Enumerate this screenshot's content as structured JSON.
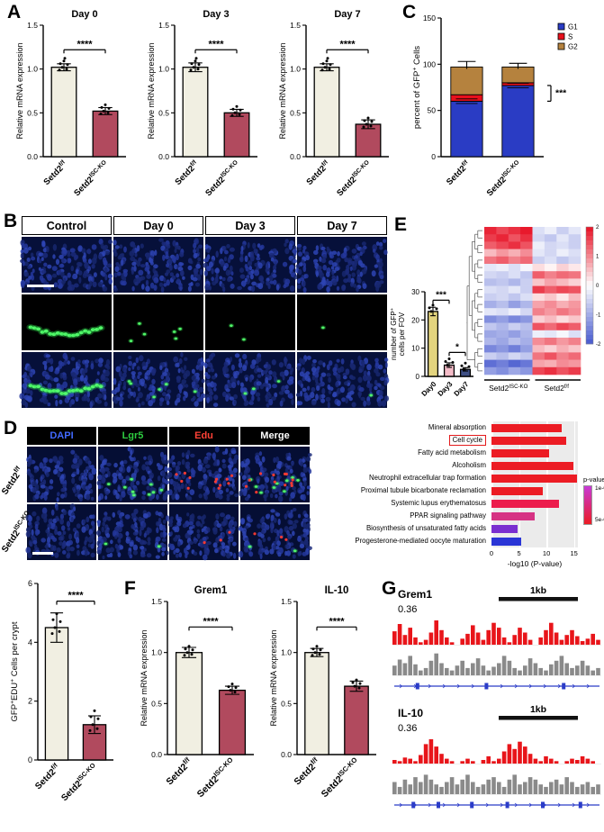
{
  "colors": {
    "cream": "#f1efe2",
    "maroon": "#b14a5e",
    "g1_blue": "#2a3cc4",
    "s_red": "#e8101c",
    "g2_brown": "#b5823e",
    "day0": "#e3d47e",
    "day3": "#f4bcc8",
    "day7": "#3e4f85",
    "heat_red": "#e8192c",
    "heat_blue": "#4d5fd0",
    "track_red": "#e8151a",
    "track_gray": "#8a8a8a",
    "gene_blue": "#2b3cc8"
  },
  "panelA": {
    "label": "A",
    "ylabel": "Relative mRNA expression",
    "yticks": [
      0.0,
      0.5,
      1.0,
      1.5
    ],
    "categories": [
      [
        {
          "t": "Setd2"
        },
        {
          "t": "f/f",
          "sup": true
        }
      ],
      [
        {
          "t": "Setd2"
        },
        {
          "t": "ISC-KO",
          "sup": true
        }
      ]
    ],
    "charts": [
      {
        "title": "Day 0",
        "values": [
          1.02,
          0.52
        ],
        "errors": [
          0.04,
          0.04
        ],
        "sig": "****"
      },
      {
        "title": "Day 3",
        "values": [
          1.02,
          0.5
        ],
        "errors": [
          0.05,
          0.04
        ],
        "sig": "****"
      },
      {
        "title": "Day 7",
        "values": [
          1.02,
          0.37
        ],
        "errors": [
          0.04,
          0.05
        ],
        "sig": "****"
      }
    ]
  },
  "panelC": {
    "label": "C",
    "ylabel_parts": [
      {
        "t": "percent of GFP"
      },
      {
        "t": "+",
        "sup": true
      },
      {
        "t": " Cells"
      }
    ],
    "yticks": [
      0,
      50,
      100,
      150
    ],
    "legend": [
      {
        "label": "G1",
        "color": "#2a3cc4"
      },
      {
        "label": "S",
        "color": "#e8101c"
      },
      {
        "label": "G2",
        "color": "#b5823e"
      }
    ],
    "categories": [
      [
        {
          "t": "Setd2"
        },
        {
          "t": "f/f",
          "sup": true
        }
      ],
      [
        {
          "t": "Setd2"
        },
        {
          "t": "ISC-KO",
          "sup": true
        }
      ]
    ],
    "bars": [
      {
        "G1": 60,
        "S": 7,
        "G2": 30
      },
      {
        "G1": 77,
        "S": 3,
        "G2": 17
      }
    ],
    "errors": [
      6,
      4
    ],
    "sig": "***"
  },
  "panelB": {
    "label": "B",
    "columns": [
      "Control",
      "Day 0",
      "Day 3",
      "Day 7"
    ],
    "gfp_green_counts": [
      0,
      6,
      2,
      1
    ],
    "merge_green_counts": [
      0,
      6,
      3,
      1
    ],
    "chart": {
      "ylabel_lines": [
        [
          {
            "t": "number of GFP"
          },
          {
            "t": "+",
            "sup": true
          }
        ],
        [
          {
            "t": "cells per FOV"
          }
        ]
      ],
      "categories": [
        "Day0",
        "Day3",
        "Day7"
      ],
      "values": [
        23,
        4,
        2.5
      ],
      "errors": [
        1.5,
        0.8,
        0.6
      ],
      "yticks": [
        0,
        10,
        20,
        30
      ],
      "sigs": [
        {
          "a": 0,
          "b": 1,
          "y": 27,
          "label": "***"
        },
        {
          "a": 1,
          "b": 2,
          "y": 8.5,
          "label": "*"
        }
      ]
    }
  },
  "panelD": {
    "label": "D",
    "columns": [
      {
        "label": "DAPI",
        "color": "#4169ff"
      },
      {
        "label": "Lgr5",
        "color": "#2ecc40"
      },
      {
        "label": "Edu",
        "color": "#ff4136"
      },
      {
        "label": "Merge",
        "color": "#ffffff"
      }
    ],
    "rows": [
      {
        "base": "Setd2",
        "sup": "f/f",
        "lgr5_green": 9,
        "edu_red": 12
      },
      {
        "base": "Setd2",
        "sup": "ISC-KO",
        "lgr5_green": 2,
        "edu_red": 3
      }
    ]
  },
  "eduChart": {
    "ylabel_parts": [
      {
        "t": "GFP"
      },
      {
        "t": "+",
        "sup": true
      },
      {
        "t": "EDU"
      },
      {
        "t": "+",
        "sup": true
      },
      {
        "t": " Cells per crypt"
      }
    ],
    "yticks": [
      0,
      2,
      4,
      6
    ],
    "categories": [
      [
        {
          "t": "Setd2"
        },
        {
          "t": "f/f",
          "sup": true
        }
      ],
      [
        {
          "t": "Setd2"
        },
        {
          "t": "ISC-KO",
          "sup": true
        }
      ]
    ],
    "values": [
      4.5,
      1.2
    ],
    "errors": [
      0.5,
      0.3
    ],
    "sig": "****"
  },
  "panelE": {
    "label": "E",
    "heatmap": {
      "group_labels": [
        [
          {
            "t": "Setd2"
          },
          {
            "t": "ISC-KO",
            "sup": true
          }
        ],
        [
          {
            "t": "Setd2"
          },
          {
            "t": "f/f",
            "sup": true
          }
        ]
      ],
      "colorbar_ticks": [
        "2",
        "1",
        "0",
        "-1",
        "-2"
      ],
      "matrix": [
        [
          1.9,
          1.6,
          1.8,
          2.0,
          -0.4,
          -0.2,
          -0.6,
          -0.3
        ],
        [
          1.7,
          1.9,
          1.5,
          1.8,
          -0.5,
          -0.7,
          -0.3,
          -0.6
        ],
        [
          1.4,
          1.6,
          1.8,
          1.5,
          -0.2,
          -0.5,
          -0.4,
          -0.6
        ],
        [
          0.6,
          0.9,
          0.7,
          1.0,
          -0.3,
          -0.5,
          -0.2,
          -0.4
        ],
        [
          1.2,
          1.4,
          1.1,
          1.3,
          -0.6,
          -0.4,
          -0.7,
          -0.5
        ],
        [
          -0.3,
          -0.2,
          -0.4,
          -0.1,
          0.3,
          0.1,
          0.4,
          0.2
        ],
        [
          -0.5,
          -0.6,
          -0.4,
          -0.7,
          1.4,
          1.1,
          1.3,
          1.2
        ],
        [
          -0.8,
          -0.7,
          -0.9,
          -0.6,
          0.5,
          0.8,
          0.6,
          0.4
        ],
        [
          -0.4,
          -0.5,
          -0.3,
          -0.6,
          1.7,
          1.4,
          1.6,
          1.5
        ],
        [
          -0.6,
          -0.5,
          -0.7,
          -0.4,
          0.3,
          0.5,
          0.2,
          0.6
        ],
        [
          -1.0,
          -0.8,
          -1.2,
          -0.9,
          0.8,
          1.0,
          0.7,
          0.9
        ],
        [
          -0.3,
          -0.4,
          -0.2,
          -0.5,
          1.1,
          0.9,
          1.2,
          1.0
        ],
        [
          -1.4,
          -1.2,
          -1.5,
          -1.3,
          0.4,
          0.6,
          0.3,
          0.5
        ],
        [
          -0.7,
          -0.9,
          -0.6,
          -0.8,
          1.5,
          1.3,
          1.6,
          1.4
        ],
        [
          -1.1,
          -1.0,
          -1.2,
          -0.9,
          -0.2,
          -0.3,
          -0.1,
          -0.4
        ],
        [
          -0.9,
          -1.1,
          -0.8,
          -1.0,
          1.0,
          1.2,
          0.9,
          1.1
        ],
        [
          -1.5,
          -1.3,
          -1.6,
          -1.2,
          0.6,
          0.4,
          0.7,
          0.5
        ],
        [
          -0.6,
          -0.8,
          -0.5,
          -0.7,
          1.2,
          1.5,
          1.1,
          1.3
        ],
        [
          -1.8,
          -1.6,
          -1.9,
          -1.7,
          0.8,
          0.7,
          1.0,
          0.9
        ],
        [
          -1.2,
          -1.4,
          -1.1,
          -1.3,
          1.6,
          1.8,
          1.5,
          1.7
        ]
      ]
    },
    "pathways": {
      "chart_data": {
        "type": "bar",
        "orientation": "horizontal",
        "xlabel": "-log10 (P-value)",
        "xlim": [
          0,
          15.7
        ]
      },
      "items": [
        {
          "name": "Mineral absorption",
          "value": 12.8,
          "color": "#ec1c24"
        },
        {
          "name": "Cell cycle",
          "value": 13.6,
          "color": "#ec1c24"
        },
        {
          "name": "Fatty acid metabolism",
          "value": 10.4,
          "color": "#ec1c24"
        },
        {
          "name": "Alcoholism",
          "value": 14.8,
          "color": "#ec1c24"
        },
        {
          "name": "Neutrophil extracellular trap formation",
          "value": 15.5,
          "color": "#ec1c24"
        },
        {
          "name": "Proximal tubule bicarbonate reclamation",
          "value": 9.3,
          "color": "#ec1c24"
        },
        {
          "name": "Systemic lupus erythematosus",
          "value": 12.2,
          "color": "#ec1c4c"
        },
        {
          "name": "PPAR signaling pathway",
          "value": 7.8,
          "color": "#d63384"
        },
        {
          "name": "Biosynthesis of unsaturated fatty acids",
          "value": 4.8,
          "color": "#7a2fd0"
        },
        {
          "name": "Progesterone-mediated oocyte maturation",
          "value": 5.4,
          "color": "#2a35d6"
        }
      ],
      "highlight": "Cell cycle",
      "xticks": [
        0,
        5,
        10,
        15
      ],
      "xlabel": "-log10 (P-value)",
      "legend": {
        "title": "p-value",
        "top": "1e-03",
        "bottom": "5e-04"
      }
    }
  },
  "panelF": {
    "label": "F",
    "ylabel": "Relative mRNA expression",
    "yticks": [
      0.0,
      0.5,
      1.0,
      1.5
    ],
    "categories": [
      [
        {
          "t": "Setd2"
        },
        {
          "t": "f/f",
          "sup": true
        }
      ],
      [
        {
          "t": "Setd2"
        },
        {
          "t": "ISC-KO",
          "sup": true
        }
      ]
    ],
    "charts": [
      {
        "title": "Grem1",
        "values": [
          1.0,
          0.63
        ],
        "errors": [
          0.05,
          0.04
        ],
        "sig": "****"
      },
      {
        "title": "IL-10",
        "values": [
          1.0,
          0.67
        ],
        "errors": [
          0.04,
          0.05
        ],
        "sig": "****"
      }
    ]
  },
  "panelG": {
    "label": "G",
    "tracks": [
      {
        "gene": "Grem1",
        "value": "0.36",
        "scale_label": "1kb",
        "red": [
          0.55,
          0.85,
          0.4,
          0.7,
          0.3,
          0.1,
          0.2,
          0.5,
          1.0,
          0.6,
          0.3,
          0.1,
          0,
          0.25,
          0.45,
          0.8,
          0.5,
          0.2,
          0.6,
          0.9,
          0.7,
          0.3,
          0.1,
          0.4,
          0.7,
          0.5,
          0.2,
          0,
          0.3,
          0.6,
          0.9,
          0.5,
          0.2,
          0.4,
          0.6,
          0.35,
          0.15,
          0.25,
          0.45,
          0.2
        ],
        "gray": [
          0.4,
          0.65,
          0.5,
          0.8,
          0.45,
          0.2,
          0.3,
          0.6,
          0.9,
          0.5,
          0.3,
          0.2,
          0.4,
          0.6,
          0.3,
          0.5,
          0.7,
          0.4,
          0.2,
          0.35,
          0.5,
          0.8,
          0.6,
          0.3,
          0.2,
          0.4,
          0.7,
          0.5,
          0.3,
          0.2,
          0.45,
          0.6,
          0.8,
          0.5,
          0.3,
          0.4,
          0.6,
          0.4,
          0.2,
          0.3
        ],
        "exons": [
          0.12,
          0.45,
          0.82
        ]
      },
      {
        "gene": "IL-10",
        "value": "0.36",
        "scale_label": "1kb",
        "red": [
          0.15,
          0.1,
          0.25,
          0.2,
          0.1,
          0.35,
          0.8,
          1.0,
          0.7,
          0.4,
          0.2,
          0.1,
          0,
          0.1,
          0.2,
          0.1,
          0,
          0.15,
          0.3,
          0.1,
          0.2,
          0.5,
          0.8,
          0.6,
          0.9,
          0.7,
          0.4,
          0.2,
          0.1,
          0.3,
          0.2,
          0.1,
          0,
          0.1,
          0.2,
          0.15,
          0.3,
          0.2,
          0.1,
          0
        ],
        "gray": [
          0.5,
          0.3,
          0.6,
          0.4,
          0.7,
          0.5,
          0.8,
          0.6,
          0.4,
          0.3,
          0.5,
          0.7,
          0.4,
          0.6,
          0.8,
          0.5,
          0.3,
          0.4,
          0.6,
          0.7,
          0.5,
          0.3,
          0.6,
          0.8,
          0.4,
          0.5,
          0.7,
          0.6,
          0.4,
          0.3,
          0.5,
          0.6,
          0.4,
          0.7,
          0.5,
          0.3,
          0.4,
          0.5,
          0.3,
          0.4
        ],
        "exons": [
          0.1,
          0.22,
          0.38,
          0.55,
          0.72,
          0.9
        ]
      }
    ]
  }
}
